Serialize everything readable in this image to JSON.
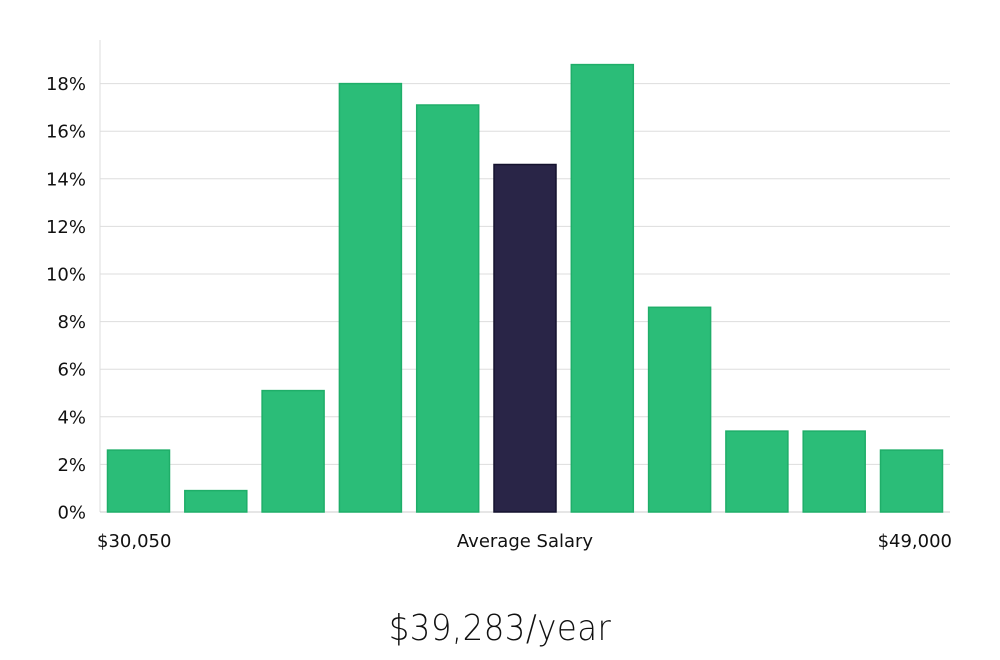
{
  "chart_data": {
    "type": "bar",
    "y_ticks": [
      "0%",
      "2%",
      "4%",
      "6%",
      "8%",
      "10%",
      "12%",
      "14%",
      "16%",
      "18%"
    ],
    "ylim": [
      0,
      20
    ],
    "values": [
      2.6,
      0.9,
      5.1,
      18.0,
      17.1,
      14.6,
      18.8,
      8.6,
      3.4,
      3.4,
      2.6
    ],
    "highlight_index": 5,
    "x_labels": {
      "left": "$30,050",
      "center": "Average Salary",
      "right": "$49,000"
    },
    "grid": true,
    "colors": {
      "bar": "#2bbd78",
      "bar_border": "#1fae69",
      "highlight": "#292547",
      "highlight_border": "#14122e",
      "grid": "#dddddd",
      "axis": "#cccccc"
    }
  },
  "headline": "$39,283/year"
}
